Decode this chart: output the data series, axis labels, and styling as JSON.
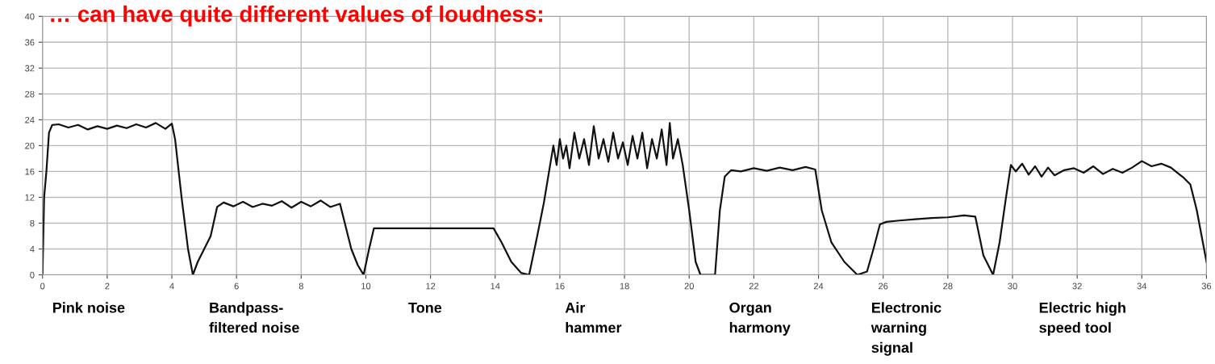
{
  "chart_data": {
    "type": "line",
    "title": "… can have quite different values of loudness:",
    "x": [
      0,
      0.05,
      0.12,
      0.2,
      0.3,
      0.5,
      0.8,
      1.1,
      1.4,
      1.7,
      2.0,
      2.3,
      2.6,
      2.9,
      3.2,
      3.5,
      3.8,
      4.0,
      4.1,
      4.3,
      4.5,
      4.65,
      4.8,
      5.0,
      5.2,
      5.4,
      5.6,
      5.9,
      6.2,
      6.5,
      6.8,
      7.1,
      7.4,
      7.7,
      8.0,
      8.3,
      8.6,
      8.9,
      9.2,
      9.35,
      9.55,
      9.75,
      9.93,
      10.1,
      10.25,
      11,
      12,
      13,
      13.95,
      14.2,
      14.5,
      14.8,
      15.05,
      15.3,
      15.5,
      15.7,
      15.8,
      15.9,
      16.0,
      16.1,
      16.2,
      16.3,
      16.45,
      16.6,
      16.75,
      16.9,
      17.05,
      17.2,
      17.35,
      17.5,
      17.65,
      17.8,
      17.95,
      18.1,
      18.25,
      18.4,
      18.55,
      18.7,
      18.85,
      19.0,
      19.15,
      19.3,
      19.4,
      19.5,
      19.65,
      19.8,
      20.0,
      20.2,
      20.35,
      20.8,
      20.95,
      21.1,
      21.3,
      21.6,
      22,
      22.4,
      22.8,
      23.2,
      23.6,
      23.9,
      24.1,
      24.4,
      24.8,
      25.2,
      25.5,
      25.7,
      25.9,
      26.1,
      26.5,
      27,
      27.5,
      28,
      28.5,
      28.85,
      29.1,
      29.4,
      29.6,
      29.8,
      29.95,
      30.1,
      30.3,
      30.5,
      30.7,
      30.9,
      31.1,
      31.3,
      31.6,
      31.9,
      32.2,
      32.5,
      32.8,
      33.1,
      33.4,
      33.7,
      34.0,
      34.3,
      34.6,
      34.9,
      35.1,
      35.3,
      35.5,
      35.7,
      35.85,
      36
    ],
    "values": [
      0,
      12,
      16,
      22,
      23.2,
      23.3,
      22.8,
      23.2,
      22.5,
      23.0,
      22.6,
      23.1,
      22.7,
      23.3,
      22.8,
      23.5,
      22.6,
      23.4,
      21,
      12,
      4,
      0,
      2,
      4,
      6,
      10.5,
      11.2,
      10.6,
      11.3,
      10.5,
      11.0,
      10.7,
      11.4,
      10.4,
      11.3,
      10.6,
      11.5,
      10.5,
      11.0,
      8,
      4,
      1.5,
      0,
      4,
      7.2,
      7.2,
      7.2,
      7.2,
      7.2,
      5,
      2,
      0.3,
      0,
      6,
      11,
      17,
      20,
      17,
      21,
      18,
      20,
      16.5,
      22,
      18,
      21,
      17,
      23,
      18,
      21,
      17.5,
      22,
      18,
      20.5,
      17,
      21.5,
      18,
      22,
      16.5,
      21,
      18,
      22.5,
      17,
      23.5,
      18,
      21,
      17,
      10,
      2,
      0,
      0,
      10,
      15.2,
      16.2,
      16.0,
      16.5,
      16.1,
      16.6,
      16.2,
      16.7,
      16.3,
      10,
      5,
      2,
      0,
      0.5,
      4,
      7.8,
      8.2,
      8.4,
      8.6,
      8.8,
      8.9,
      9.2,
      9.0,
      3,
      0,
      5,
      12,
      17,
      16,
      17.2,
      15.5,
      16.8,
      15.2,
      16.6,
      15.4,
      16.2,
      16.5,
      15.8,
      16.8,
      15.6,
      16.4,
      15.8,
      16.6,
      17.6,
      16.8,
      17.2,
      16.6,
      15.8,
      15,
      14,
      10,
      6,
      2
    ],
    "color": "#111111",
    "xlim": [
      0,
      36
    ],
    "ylim": [
      0,
      40
    ],
    "xticks": [
      0,
      2,
      4,
      6,
      8,
      10,
      12,
      14,
      16,
      18,
      20,
      22,
      24,
      26,
      28,
      30,
      32,
      34,
      36
    ],
    "yticks": [
      0,
      4,
      8,
      12,
      16,
      20,
      24,
      28,
      32,
      36,
      40
    ],
    "grid": true,
    "annotations": [
      "Pink noise",
      "Bandpass-\nfiltered noise",
      "Tone",
      "Air\nhammer",
      "Organ\nharmony",
      "Electronic\nwarning\nsignal",
      "Electric high\nspeed tool"
    ]
  }
}
